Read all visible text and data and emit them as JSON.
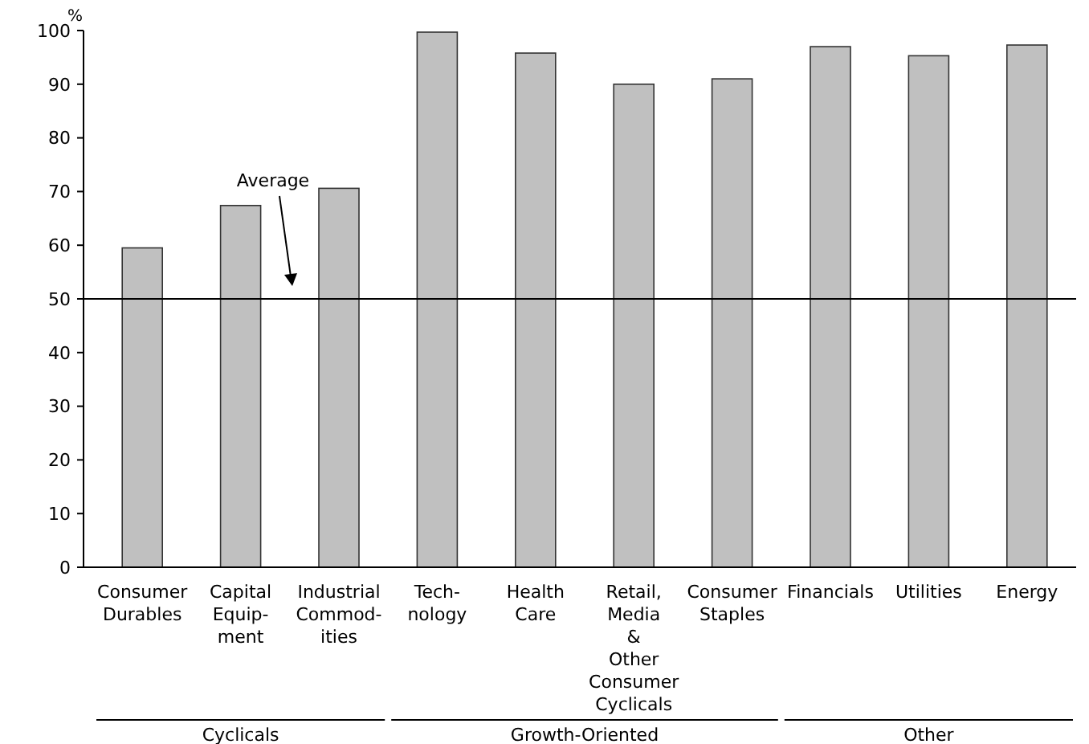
{
  "chart_data": {
    "type": "bar",
    "ylabel": "%",
    "categories": [
      "Consumer\nDurables",
      "Capital\nEquip-\nment",
      "Industrial\nCommod-\nities",
      "Tech-\nnology",
      "Health\nCare",
      "Retail,\nMedia\n&\nOther\nConsumer\nCyclicals",
      "Consumer\nStaples",
      "Financials",
      "Utilities",
      "Energy"
    ],
    "values": [
      59.5,
      67.4,
      70.6,
      99.7,
      95.8,
      90.0,
      91.0,
      97.0,
      95.3,
      97.3
    ],
    "color": "#c0c0c0",
    "ylim": [
      0,
      100
    ],
    "yticks": [
      0,
      10,
      20,
      30,
      40,
      50,
      60,
      70,
      80,
      90,
      100
    ],
    "grid": false,
    "ref_lines": [
      {
        "axis": "y",
        "value": 50,
        "label": "Average",
        "color": "#000000"
      }
    ],
    "annotations": [
      "Cyclicals",
      "Growth-Oriented",
      "Other"
    ]
  }
}
